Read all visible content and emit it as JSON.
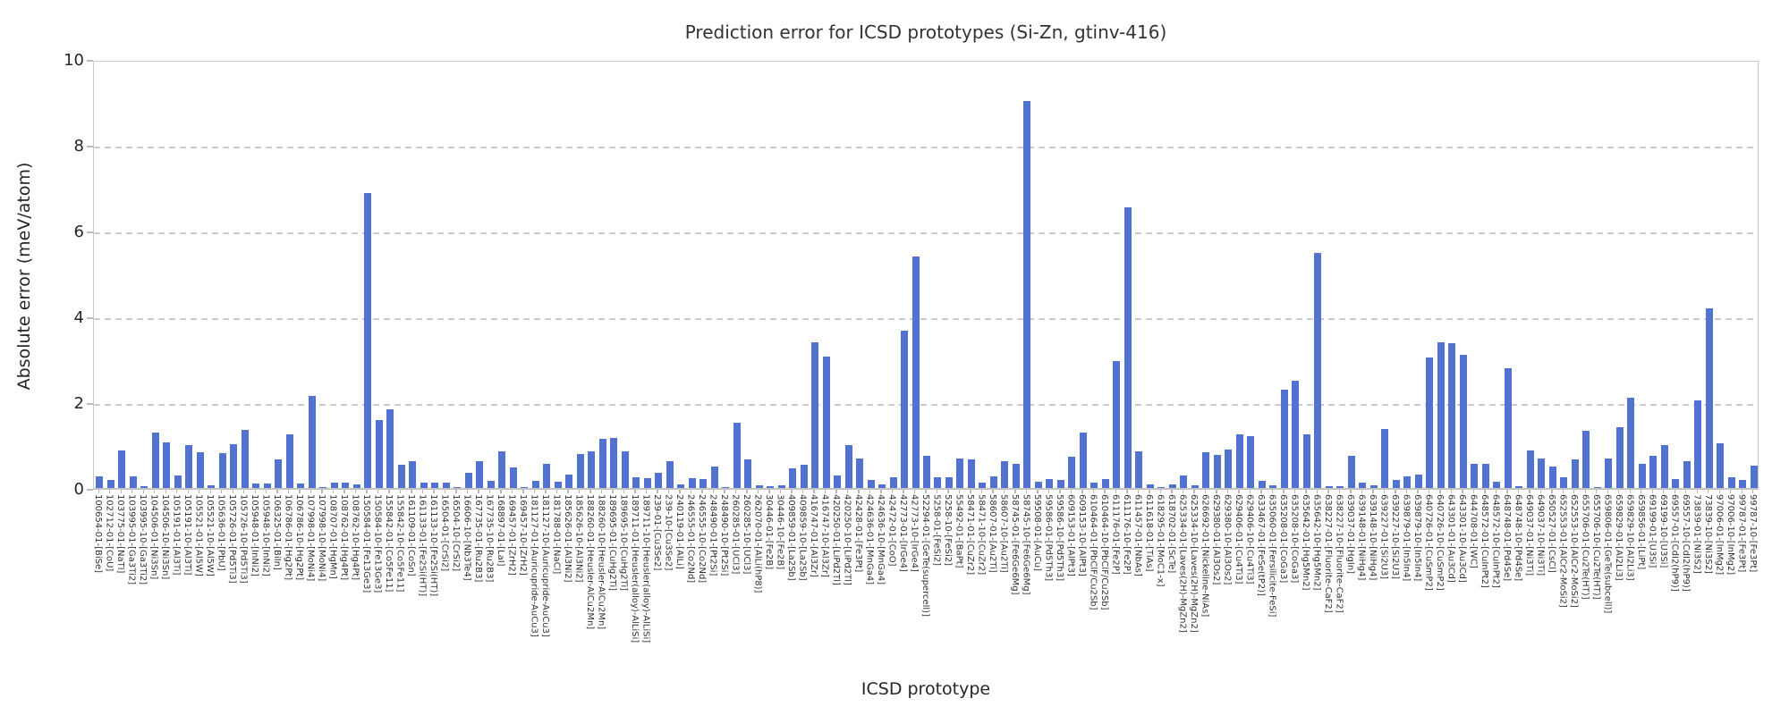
{
  "chart_data": {
    "type": "bar",
    "title": "Prediction error for ICSD prototypes (Si-Zn, gtinv-416)",
    "xlabel": "ICSD prototype",
    "ylabel": "Absolute error (meV/atom)",
    "ylim": [
      0,
      10
    ],
    "yticks": [
      0,
      2,
      4,
      6,
      8,
      10
    ],
    "grid": "horizontal dashed at yticks",
    "legend": "none",
    "bar_color": "#5173cf",
    "categories": [
      "100654-01-[BiSe]",
      "102712-01-[CoU]",
      "103775-01-[NaTl]",
      "103995-01-[Ga3Ti2]",
      "103995-10-[Ga3Ti2]",
      "104506-01-[Ni3Sn]",
      "104506-10-[Ni3Sn]",
      "105191-01-[Al3Ti]",
      "105191-10-[Al3Ti]",
      "105521-01-[Al5W]",
      "105521-10-[Al5W]",
      "105636-01-[PbU]",
      "105726-01-[Pd5Ti3]",
      "105726-10-[Pd5Ti3]",
      "105948-01-[InNi2]",
      "105948-10-[InNi2]",
      "106325-01-[BiIn]",
      "106786-01-[Hg2Pt]",
      "106786-10-[Hg2Pt]",
      "107998-01-[MoNi4]",
      "107998-10-[MoNi4]",
      "108707-01-[HgMn]",
      "108762-01-[Hg4Pt]",
      "108762-10-[Hg4Pt]",
      "150584-01-[Fe13Ge3]",
      "150584-10-[Fe13Ge3]",
      "155842-01-[Co5Fe11]",
      "155842-10-[Co5Fe11]",
      "161109-01-[CoSn]",
      "161133-01-[Fe2Si(HT)]",
      "161133-10-[Fe2Si(HT)]",
      "16504-01-[CrSi2]",
      "16504-10-[CrSi2]",
      "16606-10-[Nb3Te4]",
      "167735-01-[Ru2B3]",
      "167735-10-[Ru2B3]",
      "168897-01-[LaI]",
      "169457-01-[ZrH2]",
      "169457-10-[ZrH2]",
      "181127-01-[Auricupride-AuCu3]",
      "181127-10-[Auricupride-AuCu3]",
      "181788-01-[NaCl]",
      "185626-01-[Al3Ni2]",
      "185626-10-[Al3Ni2]",
      "188260-01-[Heusler-AlCu2Mn]",
      "188260-10-[Heusler-AlCu2Mn]",
      "189695-01-[CuHg2Ti]",
      "189695-10-[CuHg2Ti]",
      "189711-01-[Heusler(alloy)-AlLiSi]",
      "189711-10-[Heusler(alloy)-AlLiSi]",
      "239-01-[Cu3Se2]",
      "239-10-[Cu3Se2]",
      "240119-01-[AlLi]",
      "246555-01-[Co2Nd]",
      "246555-10-[Co2Nd]",
      "248490-01-[Pt2Si]",
      "248490-10-[Pt2Si]",
      "260285-01-[UCl3]",
      "260285-10-[UCl3]",
      "262070-01-[AlLi(hP8)]",
      "30446-01-[Fe2B]",
      "30446-10-[Fe2B]",
      "409859-01-[La2Sb]",
      "409859-10-[La2Sb]",
      "416747-01-[Al3Zr]",
      "416747-10-[Al3Zr]",
      "420250-01-[LiPd2Tl]",
      "420250-10-[LiPd2Tl]",
      "42428-01-[Fe3Pt]",
      "424636-01-[MnGa4]",
      "424636-10-[MnGa4]",
      "42472-01-[CoO]",
      "42773-01-[IrGe4]",
      "42773-10-[IrGe4]",
      "52294-01-[GeTe(supercell)]",
      "5258-01-[FeSi2]",
      "5258-10-[FeSi2]",
      "55492-01-[BaPt]",
      "58471-01-[CuZr2]",
      "58471-10-[CuZr2]",
      "58607-01-[Au2Ti]",
      "58607-10-[Au2Ti]",
      "58745-01-[Fe6Ge6Mg]",
      "58745-10-[Fe6Ge6Mg]",
      "59508-01-[AuCu]",
      "59586-01-[Pd5Th3]",
      "59586-10-[Pd5Th3]",
      "609153-01-[AlPt3]",
      "609153-10-[AlPt3]",
      "610464-01-[PbClF/Cu2Sb]",
      "610464-10-[PbClF/Cu2Sb]",
      "611176-01-[Fe2P]",
      "611176-10-[Fe2P]",
      "611457-01-[NbAs]",
      "611618-01-[TiAs]",
      "618295-01-[MoC1-x]",
      "618702-01-[ScTe]",
      "625334-01-[Laves(2H)-MgZn2]",
      "625334-10-[Laves(2H)-MgZn2]",
      "626692-01-[Nickeline-NiAs]",
      "629380-01-[Al3Os2]",
      "629380-10-[Al3Os2]",
      "629406-01-[Cu4Ti3]",
      "629406-10-[Cu4Ti3]",
      "633467-01-[FeSe(tP2)]",
      "635060-01-[Fersilicite-FeSi]",
      "635208-01-[CoGa3]",
      "635208-10-[CoGa3]",
      "635642-01-[Hg5Mn2]",
      "635642-10-[Hg5Mn2]",
      "638227-01-[Fluorite-CaF2]",
      "638227-10-[Fluorite-CaF2]",
      "639037-01-[HgIn]",
      "639148-01-[NiHg4]",
      "639148-10-[NiHg4]",
      "639227-01-[Si2U3]",
      "639227-10-[Si2U3]",
      "639879-01-[In5In4]",
      "639879-10-[In5In4]",
      "640726-01-[CuSmP2]",
      "640726-10-[CuSmP2]",
      "643301-01-[Au3Cd]",
      "643301-10-[Au3Cd]",
      "644708-01-[WC]",
      "648572-01-[CuInPt2]",
      "648572-10-[CuInPt2]",
      "648748-01-[Pd4Se]",
      "648748-10-[Pd4Se]",
      "649037-01-[Ni3Ti]",
      "649037-10-[Ni3Ti]",
      "650527-01-[CsCl]",
      "652553-01-[AlCr2-MoSi2]",
      "652553-10-[AlCr2-MoSi2]",
      "655706-01-[Cu2Te(HT)]",
      "655706-10-[Cu2Te(HT)]",
      "659806-01-[GeTe(subcell)]",
      "659829-01-[Al2Li3]",
      "659829-10-[Al2Li3]",
      "659856-01-[LiPt]",
      "69199-01-[U3Si]",
      "69199-10-[U3Si]",
      "69557-01-[CdI2(hP9)]",
      "69557-10-[CdI2(hP9)]",
      "73839-01-[Ni3S2]",
      "73839-10-[Ni3S2]",
      "97006-01-[InMg2]",
      "97006-10-[InMg2]",
      "99787-01-[Fe3Pt]",
      "99787-10-[Fe3Pt]"
    ],
    "values": [
      0.27,
      0.19,
      0.88,
      0.27,
      0.05,
      1.29,
      1.07,
      0.29,
      1.0,
      0.83,
      0.07,
      0.82,
      1.03,
      1.36,
      0.1,
      0.1,
      0.66,
      1.25,
      0.11,
      2.14,
      0.02,
      0.12,
      0.12,
      0.08,
      6.88,
      1.58,
      1.84,
      0.55,
      0.62,
      0.13,
      0.13,
      0.12,
      0.02,
      0.36,
      0.62,
      0.16,
      0.86,
      0.47,
      0.02,
      0.17,
      0.57,
      0.14,
      0.31,
      0.79,
      0.85,
      1.15,
      1.17,
      0.85,
      0.25,
      0.22,
      0.35,
      0.62,
      0.08,
      0.22,
      0.2,
      0.5,
      0.02,
      1.53,
      0.66,
      0.07,
      0.05,
      0.06,
      0.45,
      0.55,
      3.39,
      3.07,
      0.3,
      1.0,
      0.68,
      0.18,
      0.08,
      0.25,
      3.66,
      5.4,
      0.75,
      0.25,
      0.25,
      0.68,
      0.66,
      0.12,
      0.28,
      0.63,
      0.57,
      9.02,
      0.15,
      0.2,
      0.18,
      0.73,
      1.29,
      0.12,
      0.2,
      2.95,
      6.55,
      0.85,
      0.09,
      0.02,
      0.08,
      0.3,
      0.07,
      0.84,
      0.77,
      0.9,
      1.26,
      1.21,
      0.16,
      0.06,
      2.29,
      2.51,
      1.24,
      5.48,
      0.05,
      0.04,
      0.75,
      0.12,
      0.06,
      1.37,
      0.18,
      0.28,
      0.32,
      3.05,
      3.4,
      3.37,
      3.1,
      0.56,
      0.56,
      0.15,
      2.8,
      0.05,
      0.88,
      0.68,
      0.49,
      0.26,
      0.66,
      1.34,
      0.02,
      0.68,
      1.41,
      2.1,
      0.56,
      0.76,
      1.0,
      0.2,
      0.63,
      2.05,
      4.18,
      1.04,
      0.25,
      0.18,
      0.52
    ]
  }
}
